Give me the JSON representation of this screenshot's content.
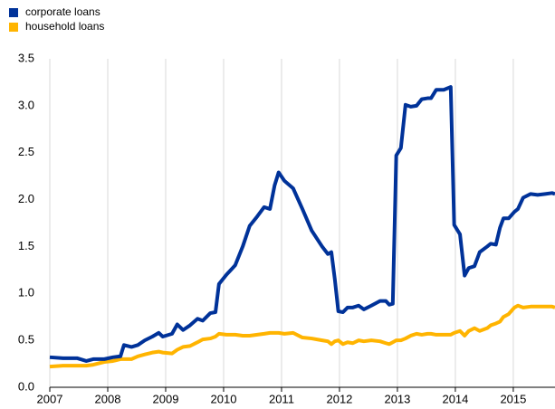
{
  "chart_data": {
    "type": "line",
    "x": [
      2007.0,
      2007.23,
      2007.47,
      2007.63,
      2007.75,
      2007.94,
      2008.09,
      2008.22,
      2008.28,
      2008.41,
      2008.52,
      2008.64,
      2008.77,
      2008.88,
      2008.95,
      2009.11,
      2009.2,
      2009.3,
      2009.42,
      2009.55,
      2009.64,
      2009.77,
      2009.86,
      2009.92,
      2010.05,
      2010.2,
      2010.33,
      2010.45,
      2010.58,
      2010.7,
      2010.8,
      2010.88,
      2010.95,
      2011.05,
      2011.2,
      2011.36,
      2011.52,
      2011.7,
      2011.8,
      2011.86,
      2011.92,
      2011.98,
      2012.06,
      2012.14,
      2012.23,
      2012.33,
      2012.42,
      2012.55,
      2012.7,
      2012.8,
      2012.86,
      2012.92,
      2012.98,
      2013.06,
      2013.14,
      2013.23,
      2013.33,
      2013.42,
      2013.52,
      2013.58,
      2013.67,
      2013.8,
      2013.92,
      2013.98,
      2014.08,
      2014.16,
      2014.23,
      2014.33,
      2014.42,
      2014.55,
      2014.61,
      2014.7,
      2014.77,
      2014.83,
      2014.92,
      2015.02,
      2015.08,
      2015.17,
      2015.3,
      2015.42,
      2015.55,
      2015.67,
      2015.72
    ],
    "series": [
      {
        "name": "corporate loans",
        "color": "#003299",
        "values": [
          0.32,
          0.31,
          0.31,
          0.28,
          0.3,
          0.3,
          0.32,
          0.33,
          0.45,
          0.43,
          0.45,
          0.5,
          0.54,
          0.58,
          0.54,
          0.57,
          0.67,
          0.61,
          0.66,
          0.73,
          0.71,
          0.79,
          0.8,
          1.1,
          1.2,
          1.3,
          1.5,
          1.72,
          1.82,
          1.92,
          1.9,
          2.15,
          2.29,
          2.2,
          2.12,
          1.9,
          1.67,
          1.5,
          1.42,
          1.44,
          1.15,
          0.81,
          0.8,
          0.85,
          0.85,
          0.87,
          0.83,
          0.87,
          0.92,
          0.92,
          0.88,
          0.89,
          2.47,
          2.55,
          3.01,
          2.99,
          3.0,
          3.07,
          3.08,
          3.08,
          3.17,
          3.17,
          3.2,
          1.73,
          1.63,
          1.19,
          1.27,
          1.29,
          1.44,
          1.5,
          1.53,
          1.52,
          1.7,
          1.8,
          1.8,
          1.87,
          1.9,
          2.02,
          2.06,
          2.05,
          2.06,
          2.07,
          2.06
        ]
      },
      {
        "name": "household loans",
        "color": "#ffb400",
        "values": [
          0.22,
          0.23,
          0.23,
          0.23,
          0.24,
          0.27,
          0.28,
          0.3,
          0.3,
          0.3,
          0.33,
          0.35,
          0.37,
          0.38,
          0.37,
          0.36,
          0.4,
          0.43,
          0.44,
          0.48,
          0.51,
          0.52,
          0.54,
          0.57,
          0.56,
          0.56,
          0.55,
          0.55,
          0.56,
          0.57,
          0.58,
          0.58,
          0.58,
          0.57,
          0.58,
          0.53,
          0.52,
          0.5,
          0.49,
          0.46,
          0.49,
          0.5,
          0.46,
          0.48,
          0.47,
          0.5,
          0.49,
          0.5,
          0.49,
          0.47,
          0.46,
          0.48,
          0.5,
          0.5,
          0.52,
          0.55,
          0.57,
          0.56,
          0.57,
          0.57,
          0.56,
          0.56,
          0.56,
          0.58,
          0.6,
          0.55,
          0.6,
          0.63,
          0.6,
          0.63,
          0.66,
          0.68,
          0.7,
          0.75,
          0.78,
          0.85,
          0.87,
          0.85,
          0.86,
          0.86,
          0.86,
          0.86,
          0.85
        ]
      }
    ],
    "xlim": [
      2007,
      2015.72
    ],
    "xticks": [
      2007,
      2008,
      2009,
      2010,
      2011,
      2012,
      2013,
      2014,
      2015
    ],
    "ylim": [
      0,
      3.5
    ],
    "yticks": [
      {
        "value": 0,
        "label": "0.0"
      },
      {
        "value": 0.5,
        "label": "0.5"
      },
      {
        "value": 1,
        "label": "1.0"
      },
      {
        "value": 1.5,
        "label": "1.5"
      },
      {
        "value": 2,
        "label": "2.0"
      },
      {
        "value": 2.5,
        "label": "2.5"
      },
      {
        "value": 3,
        "label": "3.0"
      },
      {
        "value": 3.5,
        "label": "3.5"
      }
    ],
    "grid": "x",
    "legend": "top-left"
  }
}
